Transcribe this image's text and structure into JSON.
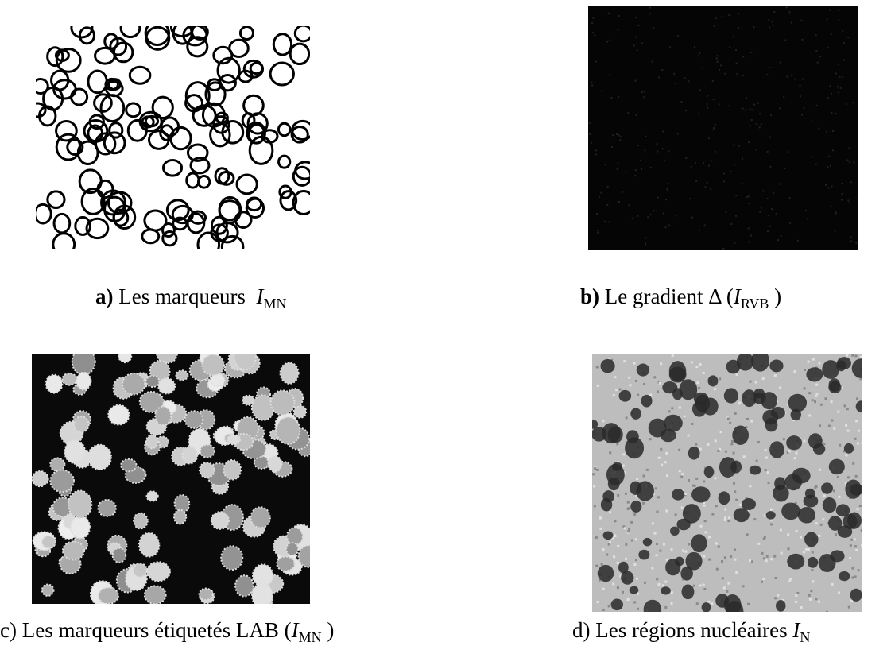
{
  "panels": [
    {
      "caption": [
        {
          "text": "a)",
          "style": "bold"
        },
        {
          "text": " Les marqueurs  ",
          "style": "normal"
        },
        {
          "text": "I",
          "style": "italic"
        },
        {
          "text": "MN",
          "style": "sub"
        }
      ]
    },
    {
      "caption": [
        {
          "text": "b)",
          "style": "bold"
        },
        {
          "text": " Le gradient Δ (",
          "style": "normal"
        },
        {
          "text": "I",
          "style": "italic"
        },
        {
          "text": "RVB",
          "style": "sub"
        },
        {
          "text": " )",
          "style": "normal"
        }
      ]
    },
    {
      "caption": [
        {
          "text": "c)",
          "style": "normal"
        },
        {
          "text": " Les marqueurs étiquetés LAB (",
          "style": "normal"
        },
        {
          "text": "I",
          "style": "italic"
        },
        {
          "text": "MN",
          "style": "sub"
        },
        {
          "text": " )",
          "style": "normal"
        }
      ]
    },
    {
      "caption": [
        {
          "text": "d)",
          "style": "normal"
        },
        {
          "text": " Les régions nucléaires ",
          "style": "normal"
        },
        {
          "text": "I",
          "style": "italic"
        },
        {
          "text": "N",
          "style": "sub"
        }
      ]
    }
  ]
}
